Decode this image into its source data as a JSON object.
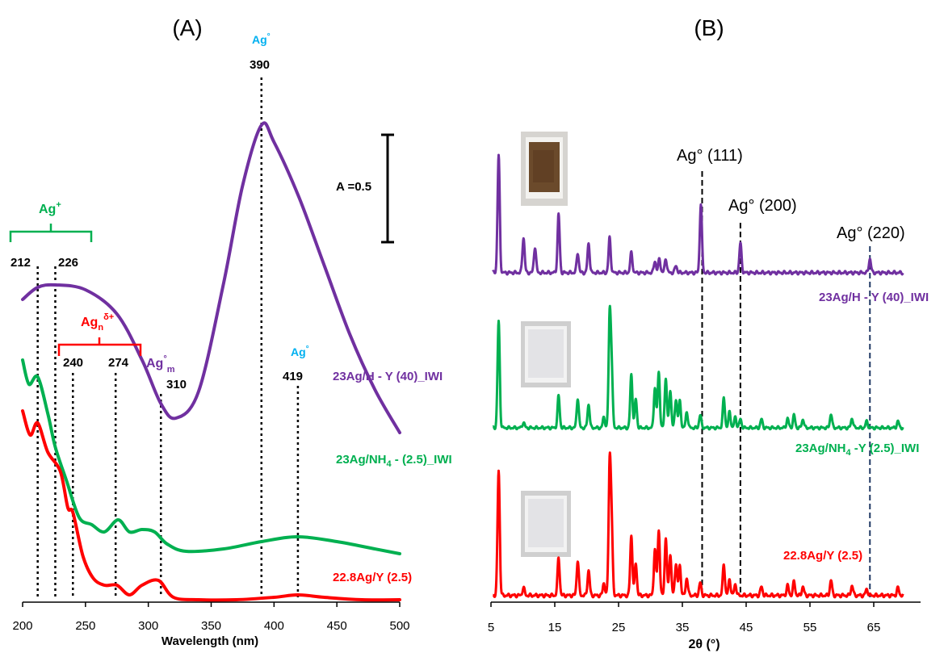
{
  "panel_a": {
    "panel_label": "(A)",
    "xlabel": "Wavelength (nm)",
    "scale_bar_label": "A =0.5",
    "ticks": [
      "200",
      "250",
      "300",
      "350",
      "400",
      "450",
      "500"
    ],
    "bracket_labels": {
      "ag_plus": "Ag",
      "ag_plus_sup": "+",
      "ag_n": "Ag",
      "ag_n_sub": "n",
      "ag_n_sup": "δ+",
      "ag_m": "Ag",
      "ag_m_sup": "°",
      "ag_m_sub": "m",
      "ag0_a": "Ag",
      "ag0_a_sup": "°",
      "ag0_b": "Ag",
      "ag0_b_sup": "°"
    },
    "peak_labels": {
      "p212": "212",
      "p226": "226",
      "p240": "240",
      "p274": "274",
      "p310": "310",
      "p390": "390",
      "p419": "419"
    },
    "series_labels": {
      "purple_pre": "23Ag/H - Y (40)_IWI",
      "green_pre": "23Ag/NH",
      "green_sub": "4",
      "green_post": " - (2.5)_IWI",
      "red": "22.8Ag/Y (2.5)"
    }
  },
  "panel_b": {
    "panel_label": "(B)",
    "xlabel": "2θ (°)",
    "ticks": [
      "5",
      "15",
      "25",
      "35",
      "45",
      "55",
      "65"
    ],
    "reflections": {
      "r111": "Ag° (111)",
      "r200": "Ag° (200)",
      "r220": "Ag° (220)"
    },
    "series_labels": {
      "purple": "23Ag/H - Y (40)_IWI",
      "green_pre": "23Ag/NH",
      "green_sub": "4",
      "green_post": " -Y (2.5)_IWI",
      "red": "22.8Ag/Y (2.5)"
    }
  },
  "colors": {
    "purple": "#7030A0",
    "green": "#00B050",
    "red": "#FF0000",
    "blue": "#00B0F0",
    "black": "#000000",
    "navy": "#1F3864"
  },
  "chart_data": [
    {
      "type": "line",
      "panel": "(A)",
      "xlabel": "Wavelength (nm)",
      "ylabel": "",
      "xlim": [
        200,
        500
      ],
      "x_ticks": [
        200,
        250,
        300,
        350,
        400,
        450,
        500
      ],
      "scale_bar": "A =0.5",
      "series": [
        {
          "name": "23Ag/H - Y (40)_IWI",
          "color": "#7030A0",
          "x": [
            200,
            212,
            226,
            250,
            275,
            295,
            310,
            322,
            340,
            360,
            375,
            390,
            400,
            420,
            440,
            460,
            480,
            500
          ],
          "y": [
            1.23,
            1.28,
            1.29,
            1.27,
            1.17,
            0.98,
            0.8,
            0.74,
            0.85,
            1.3,
            1.7,
            1.95,
            1.88,
            1.65,
            1.37,
            1.09,
            0.86,
            0.68
          ]
        },
        {
          "name": "23Ag/NH4 - (2.5)_IWI",
          "color": "#00B050",
          "x": [
            200,
            205,
            212,
            220,
            226,
            235,
            245,
            255,
            265,
            276,
            285,
            295,
            305,
            315,
            330,
            360,
            390,
            419,
            450,
            480,
            500
          ],
          "y": [
            0.98,
            0.88,
            0.91,
            0.76,
            0.62,
            0.48,
            0.33,
            0.3,
            0.27,
            0.32,
            0.27,
            0.28,
            0.27,
            0.22,
            0.19,
            0.2,
            0.23,
            0.25,
            0.23,
            0.2,
            0.18
          ]
        },
        {
          "name": "22.8Ag/Y (2.5)",
          "color": "#FF0000",
          "x": [
            200,
            206,
            212,
            220,
            230,
            236,
            240,
            248,
            256,
            265,
            275,
            285,
            295,
            308,
            320,
            340,
            370,
            400,
            419,
            440,
            470,
            500
          ],
          "y": [
            0.77,
            0.67,
            0.72,
            0.6,
            0.52,
            0.37,
            0.35,
            0.17,
            0.08,
            0.05,
            0.05,
            0.01,
            0.05,
            0.07,
            0.0,
            -0.01,
            -0.01,
            0.0,
            0.01,
            0.0,
            -0.01,
            -0.01
          ]
        }
      ],
      "annotations": [
        {
          "x": 212,
          "label": "212"
        },
        {
          "x": 226,
          "label": "226"
        },
        {
          "x": 240,
          "label": "240"
        },
        {
          "x": 274,
          "label": "274"
        },
        {
          "x": 310,
          "label": "310"
        },
        {
          "x": 390,
          "label": "390"
        },
        {
          "x": 419,
          "label": "419"
        }
      ]
    },
    {
      "type": "line",
      "panel": "(B)",
      "xlabel": "2θ (°)",
      "ylabel": "",
      "xlim": [
        5,
        70
      ],
      "x_ticks": [
        5,
        15,
        25,
        35,
        45,
        55,
        65
      ],
      "series": [
        {
          "name": "23Ag/H - Y (40)_IWI",
          "color": "#7030A0",
          "peaks": [
            [
              6.2,
              100
            ],
            [
              10.1,
              30
            ],
            [
              11.9,
              22
            ],
            [
              15.6,
              50
            ],
            [
              18.6,
              17
            ],
            [
              20.3,
              25
            ],
            [
              23.6,
              30
            ],
            [
              27.0,
              17
            ],
            [
              30.7,
              10
            ],
            [
              31.4,
              12
            ],
            [
              32.4,
              12
            ],
            [
              34.0,
              6
            ],
            [
              37.9,
              58
            ],
            [
              44.1,
              25
            ],
            [
              64.4,
              12
            ]
          ]
        },
        {
          "name": "23Ag/NH4 -Y (2.5)_IWI",
          "color": "#00B050",
          "peaks": [
            [
              6.2,
              100
            ],
            [
              10.1,
              5
            ],
            [
              15.6,
              30
            ],
            [
              18.6,
              28
            ],
            [
              20.3,
              22
            ],
            [
              22.7,
              10
            ],
            [
              23.6,
              100
            ],
            [
              23.9,
              55
            ],
            [
              27.0,
              50
            ],
            [
              27.7,
              27
            ],
            [
              30.7,
              38
            ],
            [
              31.3,
              52
            ],
            [
              32.4,
              47
            ],
            [
              33.1,
              35
            ],
            [
              34.0,
              27
            ],
            [
              34.6,
              25
            ],
            [
              35.7,
              15
            ],
            [
              37.8,
              12
            ],
            [
              41.5,
              28
            ],
            [
              42.4,
              15
            ],
            [
              43.3,
              10
            ],
            [
              44.1,
              8
            ],
            [
              47.4,
              8
            ],
            [
              51.5,
              9
            ],
            [
              52.5,
              12
            ],
            [
              53.9,
              8
            ],
            [
              58.3,
              13
            ],
            [
              61.6,
              9
            ],
            [
              63.9,
              6
            ],
            [
              68.8,
              6
            ]
          ]
        },
        {
          "name": "22.8Ag/Y (2.5)",
          "color": "#FF0000",
          "peaks": [
            [
              6.2,
              100
            ],
            [
              10.1,
              6
            ],
            [
              15.6,
              30
            ],
            [
              18.6,
              28
            ],
            [
              20.3,
              20
            ],
            [
              22.7,
              10
            ],
            [
              23.6,
              100
            ],
            [
              23.9,
              55
            ],
            [
              27.0,
              48
            ],
            [
              27.7,
              26
            ],
            [
              30.7,
              37
            ],
            [
              31.3,
              52
            ],
            [
              32.4,
              46
            ],
            [
              33.1,
              33
            ],
            [
              34.0,
              26
            ],
            [
              34.6,
              24
            ],
            [
              35.7,
              14
            ],
            [
              37.8,
              10
            ],
            [
              41.5,
              25
            ],
            [
              42.4,
              13
            ],
            [
              43.3,
              9
            ],
            [
              47.4,
              7
            ],
            [
              51.5,
              8
            ],
            [
              52.5,
              11
            ],
            [
              53.9,
              7
            ],
            [
              58.3,
              12
            ],
            [
              61.6,
              8
            ],
            [
              63.9,
              5
            ],
            [
              68.8,
              6
            ]
          ]
        }
      ],
      "reflections": [
        {
          "x": 38.1,
          "label": "Ag° (111)"
        },
        {
          "x": 44.1,
          "label": "Ag° (200)"
        },
        {
          "x": 64.4,
          "label": "Ag° (220)"
        }
      ]
    }
  ]
}
